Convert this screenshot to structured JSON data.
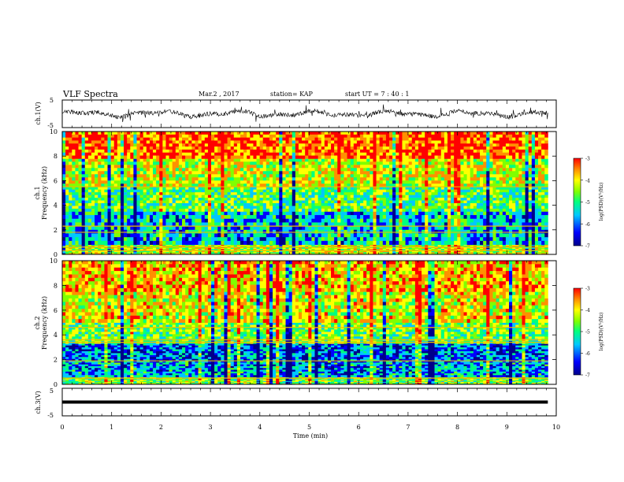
{
  "header": {
    "title": "VLF Spectra",
    "date": "Mar.2 , 2017",
    "station": "station= KAP",
    "start": "start UT = 7 : 40 : 1"
  },
  "chart_data": [
    {
      "type": "line",
      "panel": "ch1-waveform",
      "ylabel": "ch.1(V)",
      "ylim": [
        -5,
        5
      ],
      "ytick_labels": [
        "5",
        "-5"
      ],
      "xlim": [
        0,
        10
      ],
      "x_range": [
        0,
        9.83
      ],
      "baseline": 0,
      "description_values": {
        "mean": 0,
        "envelope": [
          -2.5,
          2.5
        ]
      }
    },
    {
      "type": "heatmap",
      "panel": "ch1-spectrogram",
      "ylabel": "ch.1 Frequency (kHz)",
      "ylabel_lines": [
        "ch.1",
        "Frequency (kHz)"
      ],
      "ylim": [
        0,
        10
      ],
      "ytick_labels": [
        "0",
        "2",
        "4",
        "6",
        "8",
        "10"
      ],
      "xlim": [
        0,
        10
      ],
      "x_range": [
        0,
        9.83
      ],
      "colorbar": {
        "label": "log(PSD)(V²/Hz)",
        "range": [
          -7,
          -3
        ],
        "ticks": [
          "-3",
          "-4",
          "-5",
          "-6",
          "-7"
        ]
      },
      "bands": [
        {
          "freq_range": [
            0,
            0.8
          ],
          "level": -4.5
        },
        {
          "freq_range": [
            0.8,
            3.5
          ],
          "level": -5.7
        },
        {
          "freq_range": [
            3.5,
            5.5
          ],
          "level": -5.0
        },
        {
          "freq_range": [
            5.5,
            7.8
          ],
          "level": -4.4
        },
        {
          "freq_range": [
            7.8,
            10
          ],
          "level": -3.6
        }
      ],
      "lines_khz": [
        0.3,
        0.6,
        1.8,
        2.3,
        5.5
      ]
    },
    {
      "type": "heatmap",
      "panel": "ch2-spectrogram",
      "ylabel": "ch.2 Frequency (kHz)",
      "ylabel_lines": [
        "ch.2",
        "Frequency (kHz)"
      ],
      "ylim": [
        0,
        10
      ],
      "ytick_labels": [
        "0",
        "2",
        "4",
        "6",
        "8",
        "10"
      ],
      "xlim": [
        0,
        10
      ],
      "x_range": [
        0,
        9.83
      ],
      "colorbar": {
        "label": "log(PSD)(V²/Hz)",
        "range": [
          -7,
          -3
        ],
        "ticks": [
          "-3",
          "-4",
          "-5",
          "-6",
          "-7"
        ]
      },
      "bands": [
        {
          "freq_range": [
            0,
            0.6
          ],
          "level": -4.8
        },
        {
          "freq_range": [
            0.6,
            1.9
          ],
          "level": -5.8
        },
        {
          "freq_range": [
            1.9,
            3.3
          ],
          "level": -6.1
        },
        {
          "freq_range": [
            3.3,
            5.0
          ],
          "level": -4.9
        },
        {
          "freq_range": [
            5.0,
            7.5
          ],
          "level": -4.3
        },
        {
          "freq_range": [
            7.5,
            10
          ],
          "level": -4.0
        }
      ],
      "lines_khz": [
        0.5,
        1.9,
        3.4,
        3.6,
        4.6
      ]
    },
    {
      "type": "line",
      "panel": "ch3-waveform",
      "ylabel": "ch.3(V)",
      "ylim": [
        -5,
        5
      ],
      "ytick_labels": [
        "5",
        "-5"
      ],
      "xlim": [
        0,
        10
      ],
      "x_range": [
        0,
        9.83
      ],
      "values": {
        "constant": 0
      }
    }
  ],
  "xaxis": {
    "label": "Time (min)",
    "ticks": [
      0,
      1,
      2,
      3,
      4,
      5,
      6,
      7,
      8,
      9,
      10
    ],
    "tick_labels": [
      "0",
      "1",
      "2",
      "3",
      "4",
      "5",
      "6",
      "7",
      "8",
      "9",
      "10"
    ]
  },
  "colors": {
    "colormap": [
      "#00008a",
      "#0000ff",
      "#00c8ff",
      "#00ff80",
      "#80ff00",
      "#ffff00",
      "#ff9000",
      "#ff0000"
    ],
    "axes": "#000000"
  }
}
